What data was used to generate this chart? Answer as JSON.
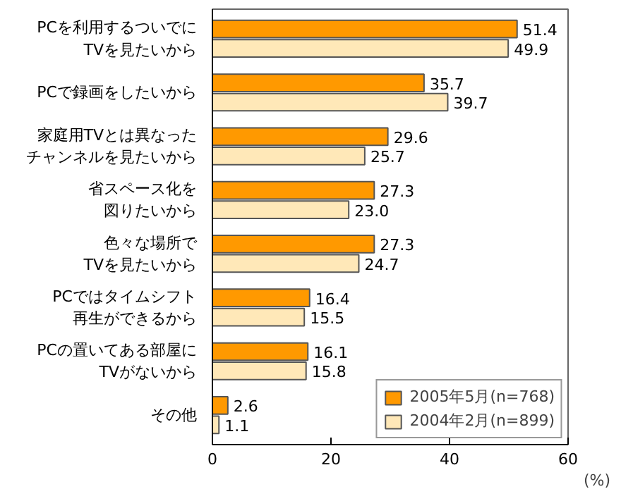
{
  "chart_data": {
    "type": "bar",
    "orientation": "horizontal",
    "xlabel": "(%)",
    "categories": [
      "PCを利用するついでにTVを見たいから",
      "PCで録画をしたいから",
      "家庭用TVとは異なったチャンネルを見たいから",
      "省スペース化を図りたいから",
      "色々な場所でTVを見たいから",
      "PCではタイムシフト再生ができるから",
      "PCの置いてある部屋にTVがないから",
      "その他"
    ],
    "series": [
      {
        "name": "2005年5月(n=768)",
        "color": "#ff9900",
        "values": [
          51.4,
          35.7,
          29.6,
          27.3,
          27.3,
          16.4,
          16.1,
          2.6
        ],
        "value_labels": [
          "51.4",
          "35.7",
          "29.6",
          "27.3",
          "27.3",
          "16.4",
          "16.1",
          "2.6"
        ]
      },
      {
        "name": "2004年2月(n=899)",
        "color": "#ffe8b8",
        "values": [
          49.9,
          39.7,
          25.7,
          23.0,
          24.7,
          15.5,
          15.8,
          1.1
        ],
        "value_labels": [
          "49.9",
          "39.7",
          "25.7",
          "23.0",
          "24.7",
          "15.5",
          "15.8",
          "1.1"
        ]
      }
    ],
    "xlim": [
      0,
      60
    ],
    "xticks": [
      0,
      20,
      40,
      60
    ],
    "grid": false,
    "legend": "bottom right"
  }
}
